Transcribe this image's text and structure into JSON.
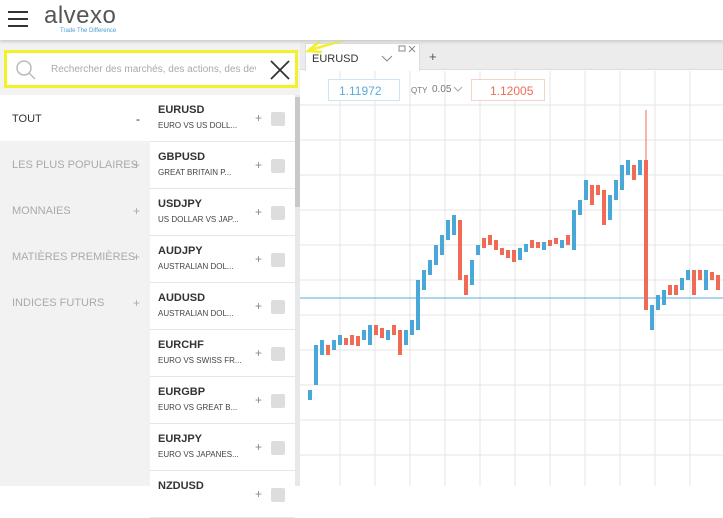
{
  "header": {
    "logo": "alvexo",
    "tagline": "Trade The Difference"
  },
  "search": {
    "placeholder": "Rechercher des marchés, des actions, des devi"
  },
  "categories": [
    {
      "label": "TOUT",
      "toggle": "-"
    },
    {
      "label": "LES PLUS POPULAIRES",
      "toggle": "+"
    },
    {
      "label": "MONNAIES",
      "toggle": "+"
    },
    {
      "label": "MATIÈRES PREMIÈRES",
      "toggle": "+"
    },
    {
      "label": "INDICES FUTURS",
      "toggle": "+"
    }
  ],
  "instruments": [
    {
      "symbol": "EURUSD",
      "description": "EURO VS US DOLL...",
      "add": "+"
    },
    {
      "symbol": "GBPUSD",
      "description": "GREAT BRITAIN P...",
      "add": "+"
    },
    {
      "symbol": "USDJPY",
      "description": "US DOLLAR VS JAP...",
      "add": "+"
    },
    {
      "symbol": "AUDJPY",
      "description": "AUSTRALIAN DOL...",
      "add": "+"
    },
    {
      "symbol": "AUDUSD",
      "description": "AUSTRALIAN DOL...",
      "add": "+"
    },
    {
      "symbol": "EURCHF",
      "description": "EURO VS SWISS FR...",
      "add": "+"
    },
    {
      "symbol": "EURGBP",
      "description": "EURO VS GREAT B...",
      "add": "+"
    },
    {
      "symbol": "EURJPY",
      "description": "EURO VS JAPANES...",
      "add": "+"
    },
    {
      "symbol": "NZDUSD",
      "description": "",
      "add": "+"
    }
  ],
  "tabs": {
    "active": "EURUSD",
    "new": "+"
  },
  "ticket": {
    "sell": "1.11972",
    "qty_label": "QTY",
    "qty": "0.05",
    "buy": "1.12005"
  }
}
